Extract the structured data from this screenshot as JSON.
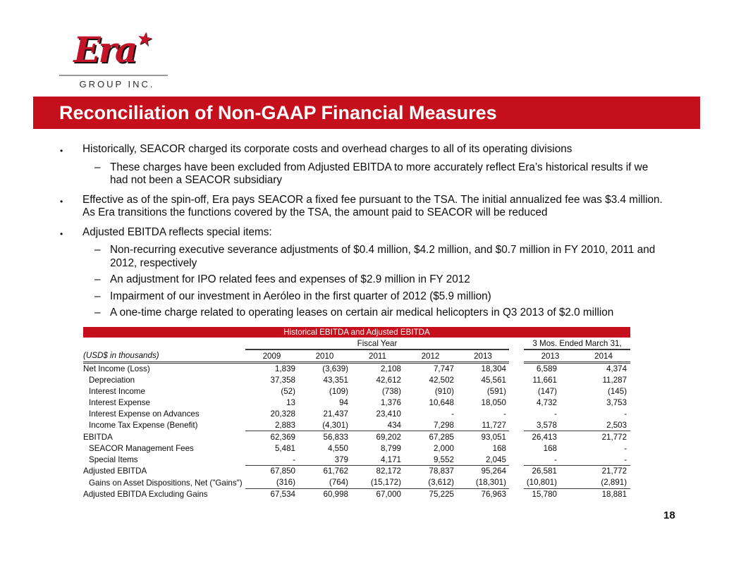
{
  "title": "Reconciliation of Non-GAAP Financial Measures",
  "page_number": "18",
  "logo": {
    "brand": "Era",
    "star_glyph": "★",
    "subtitle": "GROUP INC."
  },
  "colors": {
    "accent_red": "#c50f1c",
    "logo_red": "#c31328",
    "rule_dark": "#3a3a3a",
    "banner_text": "#ffffff"
  },
  "bullet_markers": {
    "level1": "•",
    "level2": "–"
  },
  "bullets": [
    {
      "level": 1,
      "text": "Historically, SEACOR charged its corporate costs and overhead charges to all of its operating divisions"
    },
    {
      "level": 2,
      "text": "These charges have been excluded from Adjusted EBITDA to more accurately reflect Era’s historical results if we had not been a SEACOR subsidiary"
    },
    {
      "level": 1,
      "text": "Effective as of the spin-off, Era pays SEACOR a fixed fee pursuant to the TSA. The initial annualized fee was $3.4 million. As Era transitions the functions covered by the TSA, the amount paid to SEACOR will be reduced"
    },
    {
      "level": 1,
      "text": "Adjusted EBITDA reflects special items:"
    },
    {
      "level": 2,
      "text": "Non-recurring executive severance adjustments of $0.4 million, $4.2 million, and $0.7 million in FY 2010, 2011 and 2012, respectively"
    },
    {
      "level": 2,
      "text": "An adjustment for IPO related fees and expenses of $2.9 million in FY 2012"
    },
    {
      "level": 2,
      "text": "Impairment of our investment in Aeróleo in the first quarter of 2012 ($5.9 million)"
    },
    {
      "level": 2,
      "text": "A one-time charge related to operating leases on certain air medical helicopters in Q3 2013 of $2.0 million"
    }
  ],
  "table": {
    "title": "Historical EBITDA and Adjusted EBITDA",
    "unit_label": "(USD$ in thousands)",
    "group_headers": [
      "Fiscal Year",
      "3 Mos. Ended March 31,"
    ],
    "fiscal_years": [
      "2009",
      "2010",
      "2011",
      "2012",
      "2013"
    ],
    "quarter_years": [
      "2013",
      "2014"
    ],
    "rows": [
      {
        "label": "Net Income (Loss)",
        "indent": false,
        "rule_below": false,
        "values": [
          "1,839",
          "(3,639)",
          "2,108",
          "7,747",
          "18,304",
          "6,589",
          "4,374"
        ]
      },
      {
        "label": "Depreciation",
        "indent": true,
        "rule_below": false,
        "values": [
          "37,358",
          "43,351",
          "42,612",
          "42,502",
          "45,561",
          "11,661",
          "11,287"
        ]
      },
      {
        "label": "Interest Income",
        "indent": true,
        "rule_below": false,
        "values": [
          "(52)",
          "(109)",
          "(738)",
          "(910)",
          "(591)",
          "(147)",
          "(145)"
        ]
      },
      {
        "label": "Interest Expense",
        "indent": true,
        "rule_below": false,
        "values": [
          "13",
          "94",
          "1,376",
          "10,648",
          "18,050",
          "4,732",
          "3,753"
        ]
      },
      {
        "label": "Interest Expense on Advances",
        "indent": true,
        "rule_below": false,
        "values": [
          "20,328",
          "21,437",
          "23,410",
          "-",
          "-",
          "-",
          "-"
        ]
      },
      {
        "label": "Income Tax Expense (Benefit)",
        "indent": true,
        "rule_below": true,
        "values": [
          "2,883",
          "(4,301)",
          "434",
          "7,298",
          "11,727",
          "3,578",
          "2,503"
        ]
      },
      {
        "label": "EBITDA",
        "indent": false,
        "rule_below": false,
        "values": [
          "62,369",
          "56,833",
          "69,202",
          "67,285",
          "93,051",
          "26,413",
          "21,772"
        ]
      },
      {
        "label": "SEACOR Management Fees",
        "indent": true,
        "rule_below": false,
        "values": [
          "5,481",
          "4,550",
          "8,799",
          "2,000",
          "168",
          "168",
          "-"
        ]
      },
      {
        "label": "Special Items",
        "indent": true,
        "rule_below": true,
        "values": [
          "-",
          "379",
          "4,171",
          "9,552",
          "2,045",
          "-",
          "-"
        ]
      },
      {
        "label": "Adjusted EBITDA",
        "indent": false,
        "rule_below": false,
        "values": [
          "67,850",
          "61,762",
          "82,172",
          "78,837",
          "95,264",
          "26,581",
          "21,772"
        ]
      },
      {
        "label": "Gains on Asset Dispositions, Net (\"Gains\")",
        "indent": true,
        "rule_below": true,
        "values": [
          "(316)",
          "(764)",
          "(15,172)",
          "(3,612)",
          "(18,301)",
          "(10,801)",
          "(2,891)"
        ]
      },
      {
        "label": "Adjusted EBITDA Excluding Gains",
        "indent": false,
        "rule_below": false,
        "values": [
          "67,534",
          "60,998",
          "67,000",
          "75,225",
          "76,963",
          "15,780",
          "18,881"
        ]
      }
    ]
  }
}
